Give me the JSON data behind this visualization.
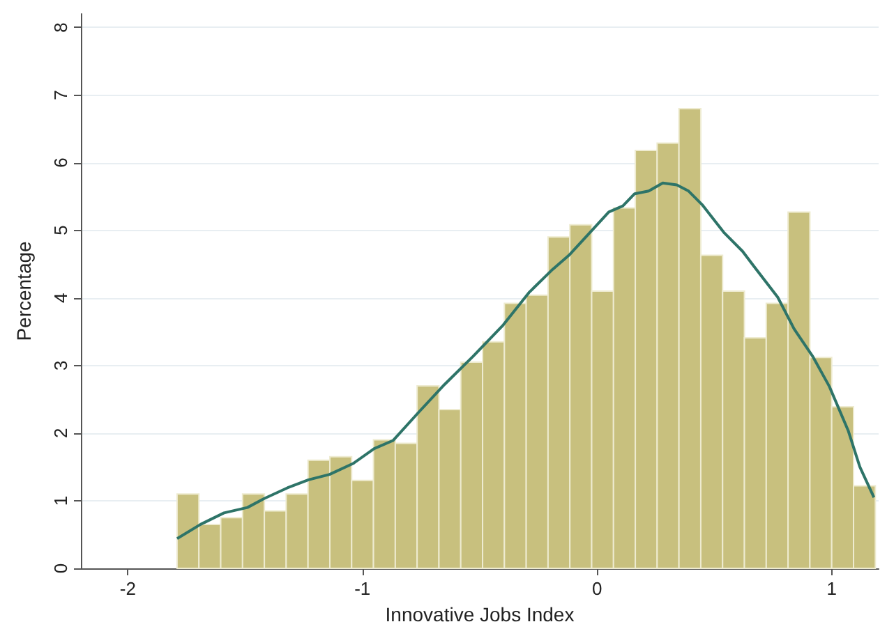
{
  "chart_data": {
    "type": "histogram",
    "xlabel": "Innovative Jobs Index",
    "ylabel": "Percentage",
    "bins": [
      -1.79,
      -1.697,
      -1.604,
      -1.511,
      -1.418,
      -1.325,
      -1.232,
      -1.139,
      -1.046,
      -0.953,
      -0.86,
      -0.767,
      -0.674,
      -0.581,
      -0.488,
      -0.395,
      -0.302,
      -0.209,
      -0.116,
      -0.023,
      0.07,
      0.163,
      0.256,
      0.349,
      0.442,
      0.535,
      0.628,
      0.721,
      0.814,
      0.907,
      1.0,
      1.093,
      1.186
    ],
    "series": [
      {
        "color": "#c8c07e",
        "values": [
          1.1,
          0.65,
          0.75,
          1.1,
          0.85,
          1.1,
          1.6,
          1.65,
          1.3,
          1.9,
          1.85,
          2.7,
          2.35,
          3.05,
          3.35,
          3.92,
          4.04,
          4.9,
          5.08,
          4.1,
          5.33,
          6.18,
          6.29,
          6.8,
          4.63,
          4.1,
          3.41,
          3.92,
          5.27,
          3.12,
          2.39,
          1.22
        ]
      },
      {
        "type": "line",
        "color": "#2e7468",
        "x": [
          -1.79,
          -1.69,
          -1.59,
          -1.49,
          -1.42,
          -1.32,
          -1.23,
          -1.14,
          -1.04,
          -0.95,
          -0.87,
          -0.76,
          -0.65,
          -0.53,
          -0.4,
          -0.29,
          -0.19,
          -0.12,
          -0.04,
          0.05,
          0.11,
          0.16,
          0.22,
          0.28,
          0.34,
          0.39,
          0.45,
          0.54,
          0.62,
          0.67,
          0.77,
          0.84,
          0.92,
          0.99,
          1.07,
          1.12,
          1.18
        ],
        "values": [
          0.44,
          0.65,
          0.82,
          0.9,
          1.03,
          1.19,
          1.31,
          1.39,
          1.55,
          1.77,
          1.89,
          2.31,
          2.72,
          3.13,
          3.6,
          4.08,
          4.42,
          4.63,
          4.93,
          5.27,
          5.36,
          5.54,
          5.58,
          5.7,
          5.67,
          5.58,
          5.37,
          4.97,
          4.69,
          4.46,
          4.01,
          3.54,
          3.13,
          2.69,
          2.04,
          1.5,
          1.05
        ]
      }
    ],
    "xlim": [
      -2.2,
      1.2
    ],
    "xticks": [
      -2,
      -1,
      0,
      1
    ],
    "ylim": [
      0,
      8.2
    ],
    "yticks": [
      0,
      1,
      2,
      3,
      4,
      5,
      6,
      7,
      8
    ],
    "grid": "y"
  }
}
